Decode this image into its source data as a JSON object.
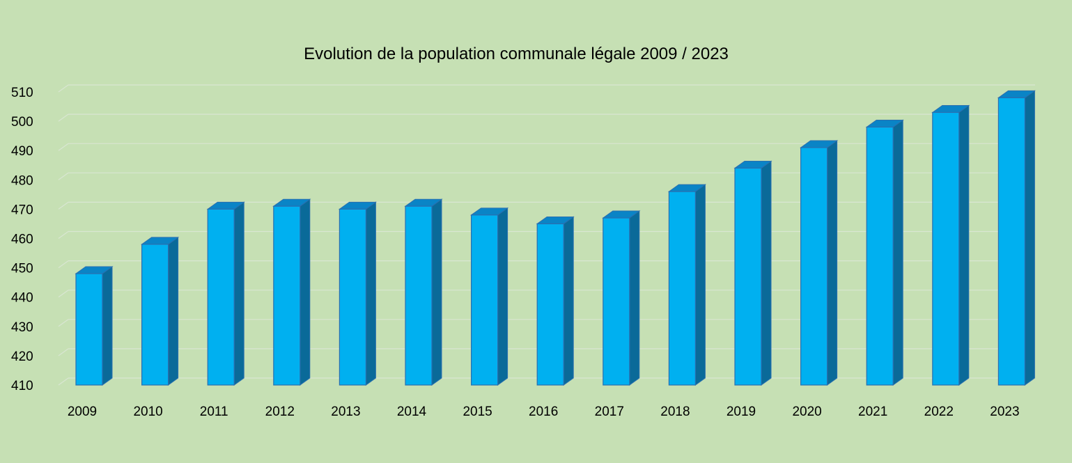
{
  "chart_data": {
    "type": "bar",
    "title": "Evolution de la population communale légale 2009 / 2023",
    "xlabel": "",
    "ylabel": "",
    "categories": [
      "2009",
      "2010",
      "2011",
      "2012",
      "2013",
      "2014",
      "2015",
      "2016",
      "2017",
      "2018",
      "2019",
      "2020",
      "2021",
      "2022",
      "2023"
    ],
    "values": [
      448,
      458,
      470,
      471,
      470,
      471,
      468,
      465,
      467,
      476,
      484,
      491,
      498,
      503,
      508
    ],
    "ylim": [
      410,
      510
    ],
    "yticks": [
      "410",
      "420",
      "430",
      "440",
      "450",
      "460",
      "470",
      "480",
      "490",
      "500",
      "510"
    ],
    "grid": true,
    "legend": "none",
    "colors": {
      "background": "#c6e0b4",
      "bar_front": "#00b0f0",
      "bar_top": "#0a84c6",
      "bar_side": "#0a6a99",
      "bar_edge": "#2a6fb0",
      "grid": "#d9e6d2"
    }
  }
}
